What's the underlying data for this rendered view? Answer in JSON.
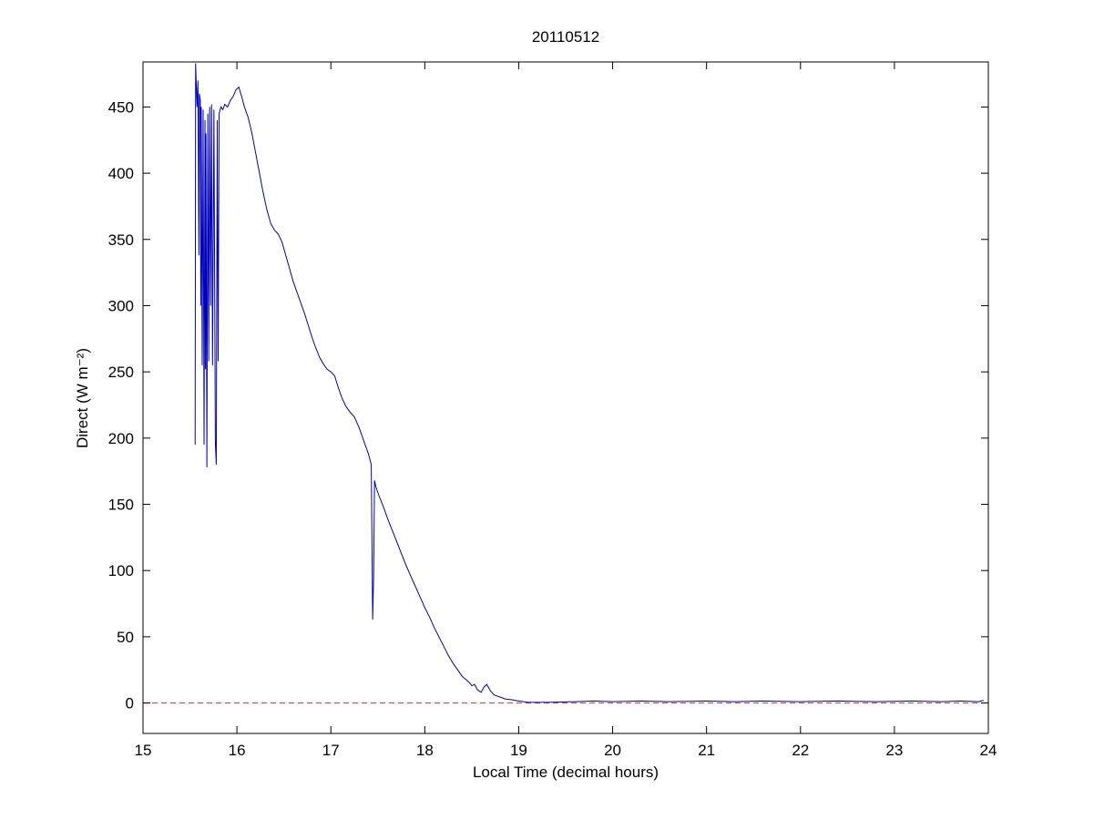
{
  "chart_data": {
    "type": "line",
    "title": "20110512",
    "xlabel": "Local Time (decimal hours)",
    "ylabel": "Direct (W m⁻²)",
    "xlim": [
      15,
      24
    ],
    "ylim": [
      -23,
      484
    ],
    "xticks": [
      15,
      16,
      17,
      18,
      19,
      20,
      21,
      22,
      23,
      24
    ],
    "yticks": [
      0,
      50,
      100,
      150,
      200,
      250,
      300,
      350,
      400,
      450
    ],
    "grid": false,
    "legend": "none",
    "colors": {
      "series_line": "#0000bb",
      "zero_line": "#cc3333",
      "axes": "#000000",
      "background": "#ffffff"
    },
    "series": [
      {
        "name": "direct-irradiance",
        "style": "solid",
        "points": [
          [
            15.555,
            195
          ],
          [
            15.56,
            483
          ],
          [
            15.575,
            450
          ],
          [
            15.585,
            470
          ],
          [
            15.595,
            338
          ],
          [
            15.6,
            460
          ],
          [
            15.61,
            455
          ],
          [
            15.615,
            300
          ],
          [
            15.62,
            450
          ],
          [
            15.63,
            255
          ],
          [
            15.64,
            448
          ],
          [
            15.65,
            195
          ],
          [
            15.66,
            440
          ],
          [
            15.665,
            252
          ],
          [
            15.67,
            430
          ],
          [
            15.68,
            178
          ],
          [
            15.69,
            445
          ],
          [
            15.7,
            258
          ],
          [
            15.71,
            450
          ],
          [
            15.72,
            300
          ],
          [
            15.73,
            452
          ],
          [
            15.74,
            255
          ],
          [
            15.755,
            448
          ],
          [
            15.77,
            197
          ],
          [
            15.78,
            180
          ],
          [
            15.79,
            440
          ],
          [
            15.8,
            258
          ],
          [
            15.81,
            445
          ],
          [
            15.83,
            450
          ],
          [
            15.85,
            448
          ],
          [
            15.87,
            452
          ],
          [
            15.9,
            450
          ],
          [
            15.93,
            455
          ],
          [
            15.96,
            458
          ],
          [
            15.99,
            463
          ],
          [
            16.02,
            465
          ],
          [
            16.05,
            458
          ],
          [
            16.08,
            450
          ],
          [
            16.12,
            442
          ],
          [
            16.16,
            430
          ],
          [
            16.2,
            415
          ],
          [
            16.24,
            400
          ],
          [
            16.28,
            385
          ],
          [
            16.32,
            372
          ],
          [
            16.36,
            362
          ],
          [
            16.4,
            357
          ],
          [
            16.44,
            354
          ],
          [
            16.48,
            348
          ],
          [
            16.52,
            338
          ],
          [
            16.56,
            328
          ],
          [
            16.6,
            318
          ],
          [
            16.64,
            310
          ],
          [
            16.68,
            302
          ],
          [
            16.72,
            294
          ],
          [
            16.76,
            285
          ],
          [
            16.8,
            276
          ],
          [
            16.84,
            268
          ],
          [
            16.88,
            261
          ],
          [
            16.92,
            256
          ],
          [
            16.96,
            252
          ],
          [
            17.0,
            250
          ],
          [
            17.04,
            247
          ],
          [
            17.08,
            238
          ],
          [
            17.12,
            230
          ],
          [
            17.16,
            224
          ],
          [
            17.2,
            220
          ],
          [
            17.25,
            216
          ],
          [
            17.3,
            208
          ],
          [
            17.35,
            198
          ],
          [
            17.4,
            188
          ],
          [
            17.43,
            180
          ],
          [
            17.445,
            63
          ],
          [
            17.455,
            95
          ],
          [
            17.465,
            168
          ],
          [
            17.48,
            163
          ],
          [
            17.52,
            155
          ],
          [
            17.56,
            148
          ],
          [
            17.6,
            140
          ],
          [
            17.65,
            131
          ],
          [
            17.7,
            122
          ],
          [
            17.75,
            113
          ],
          [
            17.8,
            104
          ],
          [
            17.85,
            96
          ],
          [
            17.9,
            88
          ],
          [
            17.95,
            80
          ],
          [
            18.0,
            72
          ],
          [
            18.05,
            65
          ],
          [
            18.1,
            57
          ],
          [
            18.15,
            50
          ],
          [
            18.2,
            43
          ],
          [
            18.25,
            36
          ],
          [
            18.3,
            30
          ],
          [
            18.35,
            25
          ],
          [
            18.4,
            20
          ],
          [
            18.45,
            17
          ],
          [
            18.48,
            15
          ],
          [
            18.5,
            13
          ],
          [
            18.53,
            14
          ],
          [
            18.56,
            10
          ],
          [
            18.6,
            8
          ],
          [
            18.63,
            12
          ],
          [
            18.66,
            14
          ],
          [
            18.7,
            9
          ],
          [
            18.74,
            6
          ],
          [
            18.78,
            5
          ],
          [
            18.82,
            4
          ],
          [
            18.86,
            3
          ],
          [
            18.92,
            2.5
          ],
          [
            19.0,
            1.5
          ],
          [
            19.05,
            1
          ],
          [
            19.1,
            0.5
          ],
          [
            19.3,
            0.5
          ],
          [
            19.6,
            1
          ],
          [
            19.8,
            1.5
          ],
          [
            20.0,
            1
          ],
          [
            20.3,
            1.5
          ],
          [
            20.6,
            1
          ],
          [
            21.0,
            1.5
          ],
          [
            21.3,
            1
          ],
          [
            21.6,
            1.5
          ],
          [
            22.0,
            1
          ],
          [
            22.4,
            1.5
          ],
          [
            22.8,
            1
          ],
          [
            23.2,
            1.5
          ],
          [
            23.5,
            1
          ],
          [
            23.7,
            1.5
          ],
          [
            23.9,
            1
          ],
          [
            23.95,
            2
          ]
        ]
      },
      {
        "name": "zero-reference",
        "style": "dashed",
        "constant_y": 0
      }
    ]
  }
}
